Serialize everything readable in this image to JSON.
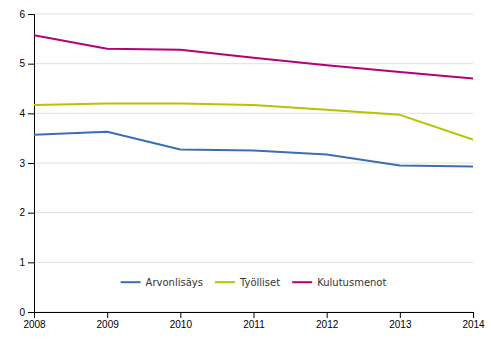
{
  "chart_data": {
    "type": "line",
    "x": [
      2008,
      2009,
      2010,
      2011,
      2012,
      2013,
      2014
    ],
    "series": [
      {
        "name": "Arvonlisäys",
        "color": "#3a6eb5",
        "values": [
          3.57,
          3.63,
          3.27,
          3.25,
          3.17,
          2.95,
          2.93
        ]
      },
      {
        "name": "Työlliset",
        "color": "#b5c400",
        "values": [
          4.17,
          4.2,
          4.2,
          4.17,
          4.07,
          3.97,
          3.47
        ]
      },
      {
        "name": "Kulutusmenot",
        "color": "#b5007a",
        "values": [
          5.57,
          5.3,
          5.28,
          5.12,
          4.97,
          4.83,
          4.7
        ]
      }
    ],
    "xlim": [
      2008,
      2014
    ],
    "xticks": [
      2008,
      2009,
      2010,
      2011,
      2012,
      2013,
      2014
    ],
    "ylim": [
      0,
      6
    ],
    "yticks": [
      0,
      1,
      2,
      3,
      4,
      5,
      6
    ],
    "grid": true,
    "legend": "bottom"
  }
}
